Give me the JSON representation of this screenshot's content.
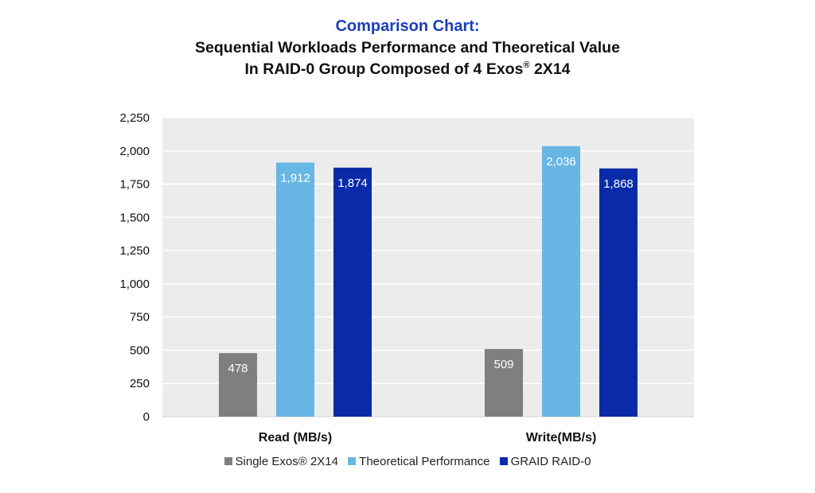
{
  "title": {
    "line1": "Comparison Chart:",
    "line2": "Sequential Workloads Performance and Theoretical Value",
    "line3_pre": "In RAID-0 Group Composed of 4 Exos",
    "line3_reg": "®",
    "line3_post": " 2X14"
  },
  "colors": {
    "single": "#7f7f7f",
    "theoretical": "#67b6e4",
    "graid": "#0a2ba8",
    "plot_bg": "#ececec",
    "grid": "#ffffff"
  },
  "chart_data": {
    "type": "bar",
    "categories": [
      "Read (MB/s)",
      "Write(MB/s)"
    ],
    "series": [
      {
        "name": "Single Exos® 2X14",
        "color": "#7f7f7f",
        "values": [
          478,
          509
        ],
        "labels": [
          "478",
          "509"
        ]
      },
      {
        "name": "Theoretical Performance",
        "color": "#67b6e4",
        "values": [
          1912,
          2036
        ],
        "labels": [
          "1,912",
          "2,036"
        ]
      },
      {
        "name": "GRAID RAID-0",
        "color": "#0a2ba8",
        "values": [
          1874,
          1868
        ],
        "labels": [
          "1,874",
          "1,868"
        ]
      }
    ],
    "ylim": [
      0,
      2250
    ],
    "yticks": [
      0,
      250,
      500,
      750,
      1000,
      1250,
      1500,
      1750,
      2000,
      2250
    ],
    "ytick_labels": [
      "0",
      "250",
      "500",
      "750",
      "1,000",
      "1,250",
      "1,500",
      "1,750",
      "2,000",
      "2,250"
    ],
    "grid": true,
    "legend_position": "bottom",
    "title": "Comparison Chart: Sequential Workloads Performance and Theoretical Value In RAID-0 Group Composed of 4 Exos® 2X14",
    "xlabel": "",
    "ylabel": ""
  },
  "legend": {
    "items": [
      {
        "label": "Single Exos® 2X14"
      },
      {
        "label": "Theoretical Performance"
      },
      {
        "label": "GRAID RAID-0"
      }
    ]
  }
}
